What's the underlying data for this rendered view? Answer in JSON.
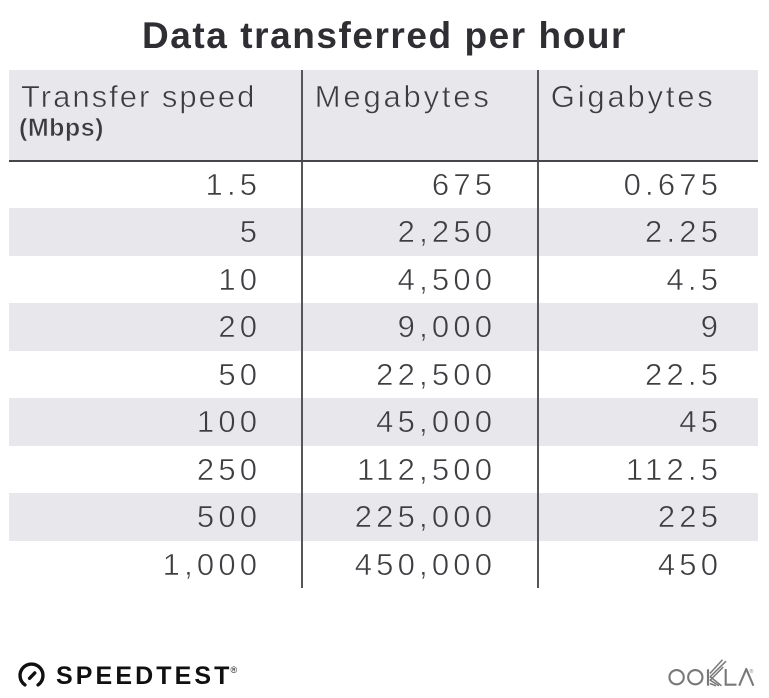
{
  "title": "Data transferred per hour",
  "table": {
    "header": {
      "col1_label": "Transfer speed",
      "col1_sublabel": "(Mbps)",
      "col2_label": "Megabytes",
      "col3_label": "Gigabytes"
    },
    "rows": [
      [
        "1.5",
        "675",
        "0.675"
      ],
      [
        "5",
        "2,250",
        "2.25"
      ],
      [
        "10",
        "4,500",
        "4.5"
      ],
      [
        "20",
        "9,000",
        "9"
      ],
      [
        "50",
        "22,500",
        "22.5"
      ],
      [
        "100",
        "45,000",
        "45"
      ],
      [
        "250",
        "112,500",
        "112.5"
      ],
      [
        "500",
        "225,000",
        "225"
      ],
      [
        "1,000",
        "450,000",
        "450"
      ]
    ]
  },
  "footer": {
    "speedtest_label": "SPEEDTEST",
    "speedtest_registered": "®",
    "ookla_label": "OOKLA",
    "ookla_registered": "®"
  },
  "colors": {
    "background": "#ffffff",
    "stripe_gray": "#e8e8ec",
    "title_color": "#2f2f33",
    "header_text": "#3c3c40",
    "number_text": "#3e3e42",
    "column_line": "#55555a",
    "header_rule": "#47474b",
    "brand_black": "#101010",
    "ookla_gray": "#78787b"
  },
  "chart_data": {
    "type": "table",
    "title": "Data transferred per hour",
    "columns": [
      "Transfer speed (Mbps)",
      "Megabytes",
      "Gigabytes"
    ],
    "rows": [
      [
        1.5,
        675,
        0.675
      ],
      [
        5,
        2250,
        2.25
      ],
      [
        10,
        4500,
        4.5
      ],
      [
        20,
        9000,
        9
      ],
      [
        50,
        22500,
        22.5
      ],
      [
        100,
        45000,
        45
      ],
      [
        250,
        112500,
        112.5
      ],
      [
        500,
        225000,
        225
      ],
      [
        1000,
        450000,
        450
      ]
    ]
  }
}
